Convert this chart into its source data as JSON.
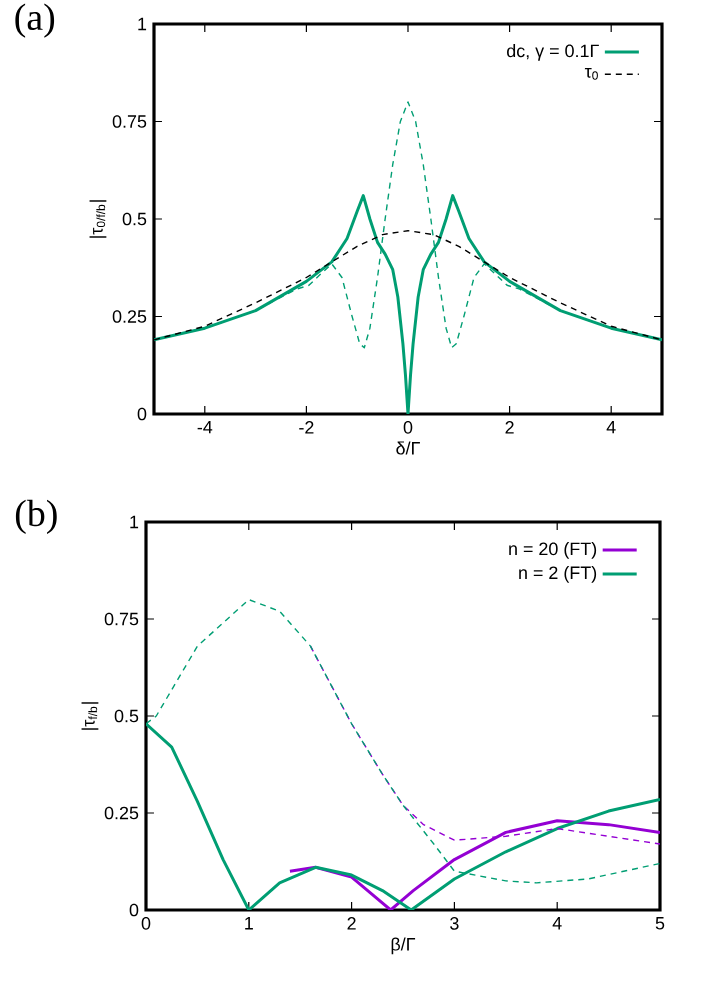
{
  "chart_data": [
    {
      "type": "line",
      "title": "(a)",
      "xlabel": "δ/Γ",
      "ylabel": "|τ$_{0/f/b}$|",
      "xlim": [
        -5,
        5
      ],
      "ylim": [
        0,
        1
      ],
      "xticks": [
        -4,
        -2,
        0,
        2,
        4
      ],
      "yticks": [
        0,
        0.25,
        0.5,
        0.75,
        1
      ],
      "legend": "top right",
      "series": [
        {
          "name": "dc, γ = 0.1Γ",
          "color": "#009e73",
          "line_style": "solid",
          "x": [
            -5,
            -4,
            -3,
            -2,
            -1.5,
            -1.2,
            -1.0,
            -0.88,
            -0.75,
            -0.6,
            -0.45,
            -0.3,
            -0.2,
            -0.1,
            -0.05,
            0,
            0.05,
            0.1,
            0.2,
            0.3,
            0.45,
            0.6,
            0.75,
            0.88,
            1.0,
            1.2,
            1.5,
            2,
            3,
            4,
            5
          ],
          "values": [
            0.19,
            0.22,
            0.265,
            0.34,
            0.39,
            0.45,
            0.52,
            0.56,
            0.5,
            0.44,
            0.41,
            0.37,
            0.3,
            0.18,
            0.1,
            0.0,
            0.1,
            0.18,
            0.3,
            0.37,
            0.41,
            0.44,
            0.5,
            0.56,
            0.52,
            0.45,
            0.39,
            0.34,
            0.265,
            0.22,
            0.19
          ]
        },
        {
          "color": "#009e73",
          "line_style": "dashed",
          "x": [
            -5,
            -4,
            -3,
            -2.2,
            -1.95,
            -1.75,
            -1.5,
            -1.3,
            -1.1,
            -0.95,
            -0.86,
            -0.75,
            -0.6,
            -0.45,
            -0.3,
            -0.15,
            0,
            0.15,
            0.3,
            0.45,
            0.6,
            0.75,
            0.86,
            0.95,
            1.1,
            1.3,
            1.5,
            1.75,
            1.95,
            2.2,
            3,
            4,
            5
          ],
          "values": [
            0.19,
            0.22,
            0.265,
            0.32,
            0.33,
            0.355,
            0.385,
            0.35,
            0.25,
            0.18,
            0.17,
            0.22,
            0.35,
            0.5,
            0.64,
            0.75,
            0.8,
            0.75,
            0.64,
            0.5,
            0.35,
            0.22,
            0.17,
            0.18,
            0.25,
            0.35,
            0.385,
            0.355,
            0.33,
            0.32,
            0.265,
            0.22,
            0.19
          ]
        },
        {
          "name": "τ$_{0}$",
          "color": "#000000",
          "line_style": "dashed",
          "x": [
            -5,
            -4,
            -3,
            -2,
            -1.5,
            -1,
            -0.5,
            0,
            0.5,
            1,
            1.5,
            2,
            3,
            4,
            5
          ],
          "values": [
            0.19,
            0.225,
            0.285,
            0.35,
            0.39,
            0.43,
            0.46,
            0.47,
            0.46,
            0.43,
            0.39,
            0.35,
            0.285,
            0.225,
            0.19
          ]
        }
      ]
    },
    {
      "type": "line",
      "title": "(b)",
      "xlabel": "β/Γ",
      "ylabel": "|τ$_{f/b}$|",
      "xlim": [
        0,
        5
      ],
      "ylim": [
        0,
        1
      ],
      "xticks": [
        0,
        1,
        2,
        3,
        4,
        5
      ],
      "yticks": [
        0,
        0.25,
        0.5,
        0.75,
        1
      ],
      "legend": "top right",
      "series": [
        {
          "name": "n = 20 (FT)",
          "color": "#9400d3",
          "line_style": "solid",
          "x": [
            1.4,
            1.65,
            2.0,
            2.2,
            2.38,
            2.6,
            3,
            3.5,
            4,
            4.5,
            5
          ],
          "values": [
            0.1,
            0.11,
            0.085,
            0.04,
            0.0,
            0.05,
            0.13,
            0.2,
            0.23,
            0.22,
            0.2
          ]
        },
        {
          "name": "n = 2 (FT)",
          "color": "#009e73",
          "line_style": "solid",
          "x": [
            0,
            0.25,
            0.5,
            0.75,
            1,
            1.3,
            1.65,
            2.0,
            2.3,
            2.58,
            3,
            3.5,
            4,
            4.5,
            5
          ],
          "values": [
            0.48,
            0.42,
            0.28,
            0.13,
            0.0,
            0.07,
            0.11,
            0.09,
            0.05,
            0.0,
            0.08,
            0.15,
            0.21,
            0.255,
            0.285
          ]
        },
        {
          "color": "#9400d3",
          "line_style": "dashed",
          "x": [
            1.6,
            2,
            2.3,
            2.5,
            2.7,
            3,
            3.5,
            4,
            4.5,
            5
          ],
          "values": [
            0.68,
            0.48,
            0.35,
            0.27,
            0.22,
            0.18,
            0.19,
            0.21,
            0.19,
            0.17
          ]
        },
        {
          "color": "#009e73",
          "line_style": "dashed",
          "x": [
            0,
            0.1,
            0.5,
            1,
            1.3,
            1.6,
            2,
            2.3,
            2.5,
            2.8,
            3,
            3.5,
            3.8,
            4.3,
            5
          ],
          "values": [
            0.48,
            0.5,
            0.68,
            0.8,
            0.77,
            0.68,
            0.48,
            0.35,
            0.27,
            0.17,
            0.1,
            0.075,
            0.07,
            0.08,
            0.12
          ]
        }
      ]
    }
  ]
}
